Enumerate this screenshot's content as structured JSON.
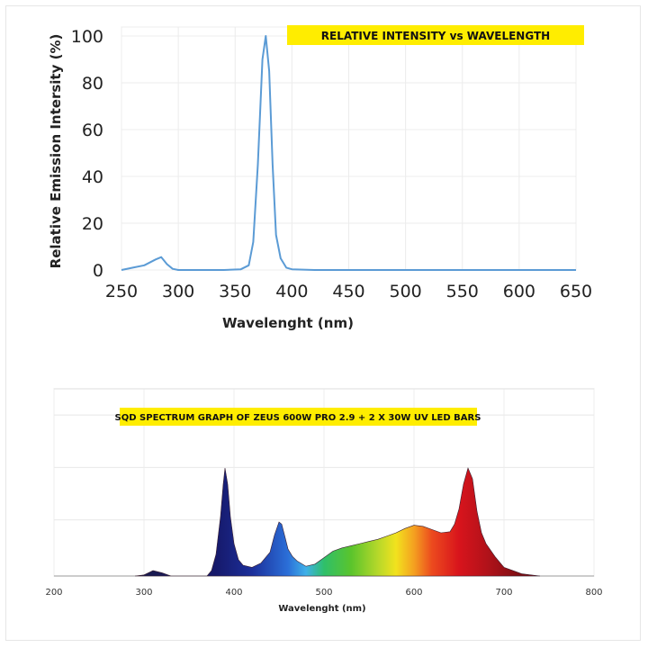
{
  "chart_data": [
    {
      "type": "line",
      "title": "RELATIVE INTENSITY vs WAVELENGTH",
      "xlabel": "Wavelenght (nm)",
      "ylabel": "Relative Emission Intersity (%)",
      "xlim": [
        250,
        650
      ],
      "ylim": [
        0,
        100
      ],
      "xticks": [
        250,
        300,
        350,
        400,
        450,
        500,
        550,
        600,
        650
      ],
      "yticks": [
        0,
        20,
        40,
        60,
        80,
        100
      ],
      "grid": true,
      "series": [
        {
          "color": "#5b9bd5",
          "x": [
            250,
            260,
            270,
            280,
            285,
            290,
            295,
            300,
            320,
            340,
            355,
            362,
            366,
            370,
            374,
            377,
            380,
            383,
            386,
            390,
            395,
            400,
            420,
            450,
            500,
            550,
            600,
            650
          ],
          "y": [
            0,
            1,
            2,
            4.5,
            5.5,
            2.5,
            0.5,
            0,
            0,
            0,
            0.3,
            2,
            12,
            45,
            90,
            100,
            85,
            45,
            15,
            5,
            1,
            0.3,
            0,
            0,
            0,
            0,
            0,
            0
          ]
        }
      ]
    },
    {
      "type": "area",
      "title": "SQD SPECTRUM GRAPH OF ZEUS 600W PRO 2.9 + 2 X 30W UV LED BARS",
      "xlabel": "Wavelenght (nm)",
      "ylabel": "",
      "xlim": [
        200,
        800
      ],
      "ylim": [
        0,
        1
      ],
      "xticks": [
        200,
        300,
        400,
        500,
        600,
        700,
        800
      ],
      "grid": true,
      "fill": "visible-spectrum-gradient",
      "series": [
        {
          "x": [
            290,
            300,
            310,
            320,
            330,
            370,
            375,
            380,
            385,
            388,
            390,
            393,
            396,
            400,
            405,
            410,
            420,
            430,
            440,
            445,
            450,
            453,
            457,
            460,
            465,
            470,
            480,
            490,
            500,
            510,
            520,
            530,
            540,
            550,
            560,
            570,
            580,
            590,
            600,
            610,
            620,
            630,
            640,
            645,
            650,
            655,
            660,
            665,
            670,
            675,
            680,
            690,
            700,
            720,
            740
          ],
          "y": [
            0,
            0.01,
            0.05,
            0.03,
            0,
            0,
            0.05,
            0.2,
            0.55,
            0.85,
            1.0,
            0.85,
            0.55,
            0.3,
            0.15,
            0.1,
            0.08,
            0.12,
            0.22,
            0.38,
            0.5,
            0.48,
            0.35,
            0.25,
            0.18,
            0.14,
            0.09,
            0.11,
            0.17,
            0.23,
            0.26,
            0.28,
            0.3,
            0.32,
            0.34,
            0.37,
            0.4,
            0.44,
            0.47,
            0.46,
            0.43,
            0.4,
            0.41,
            0.48,
            0.62,
            0.85,
            1.0,
            0.9,
            0.6,
            0.4,
            0.3,
            0.18,
            0.08,
            0.02,
            0
          ]
        }
      ]
    }
  ]
}
